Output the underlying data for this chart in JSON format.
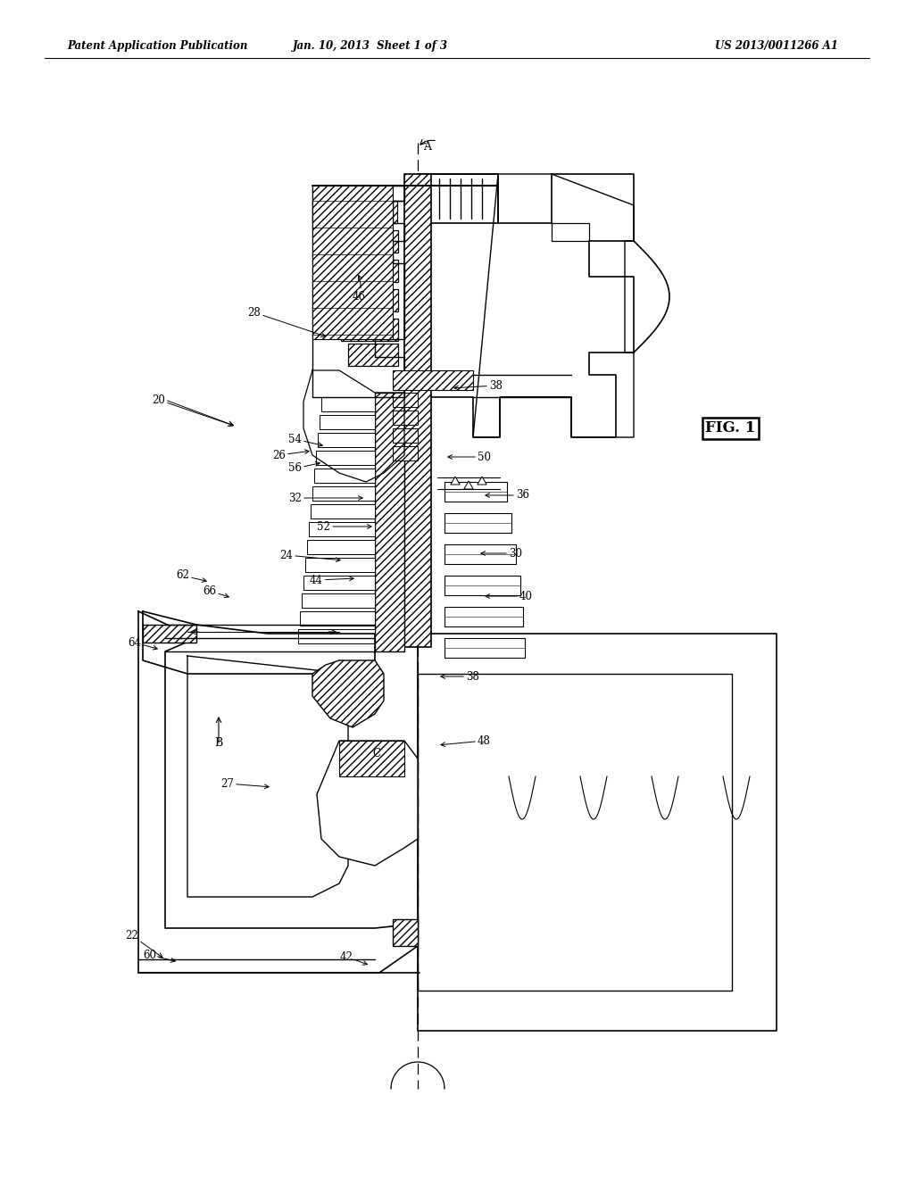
{
  "header_left": "Patent Application Publication",
  "header_center": "Jan. 10, 2013  Sheet 1 of 3",
  "header_right": "US 2013/0011266 A1",
  "fig_label": "FIG. 1",
  "bg": "#ffffff",
  "lc": "#000000"
}
